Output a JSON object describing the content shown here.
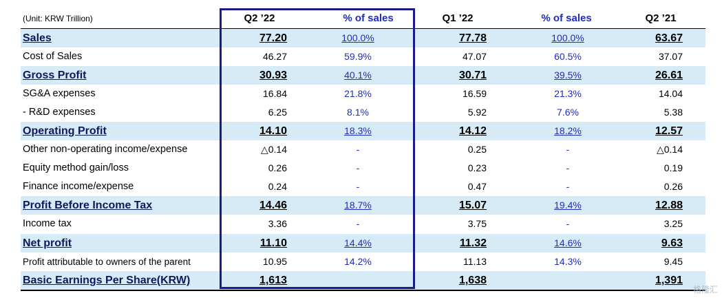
{
  "header": {
    "unit": "(Unit: KRW Trillion)",
    "col1": "Q2 ’22",
    "col2": "% of sales",
    "col3": "Q1 ’22",
    "col4": "% of sales",
    "col5": "Q2 ’21"
  },
  "rows": [
    {
      "label": "Sales",
      "q2_22": "77.20",
      "pct_q2_22": "100.0%",
      "q1_22": "77.78",
      "pct_q1_22": "100.0%",
      "q2_21": "63.67"
    },
    {
      "label": "Cost of Sales",
      "q2_22": "46.27",
      "pct_q2_22": "59.9%",
      "q1_22": "47.07",
      "pct_q1_22": "60.5%",
      "q2_21": "37.07"
    },
    {
      "label": "Gross Profit",
      "q2_22": "30.93",
      "pct_q2_22": "40.1%",
      "q1_22": "30.71",
      "pct_q1_22": "39.5%",
      "q2_21": "26.61"
    },
    {
      "label": "SG&A expenses",
      "q2_22": "16.84",
      "pct_q2_22": "21.8%",
      "q1_22": "16.59",
      "pct_q1_22": "21.3%",
      "q2_21": "14.04"
    },
    {
      "label": " - R&D expenses",
      "q2_22": "6.25",
      "pct_q2_22": "8.1%",
      "q1_22": "5.92",
      "pct_q1_22": "7.6%",
      "q2_21": "5.38"
    },
    {
      "label": "Operating Profit",
      "q2_22": "14.10",
      "pct_q2_22": "18.3%",
      "q1_22": "14.12",
      "pct_q1_22": "18.2%",
      "q2_21": "12.57"
    },
    {
      "label": "Other non-operating income/expense",
      "q2_22": "△0.14",
      "pct_q2_22": "-",
      "q1_22": "0.25",
      "pct_q1_22": "-",
      "q2_21": "△0.14"
    },
    {
      "label": "Equity method gain/loss",
      "q2_22": "0.26",
      "pct_q2_22": "-",
      "q1_22": "0.23",
      "pct_q1_22": "-",
      "q2_21": "0.19"
    },
    {
      "label": "Finance income/expense",
      "q2_22": "0.24",
      "pct_q2_22": "-",
      "q1_22": "0.47",
      "pct_q1_22": "-",
      "q2_21": "0.26"
    },
    {
      "label": "Profit Before Income Tax",
      "q2_22": "14.46",
      "pct_q2_22": "18.7%",
      "q1_22": "15.07",
      "pct_q1_22": "19.4%",
      "q2_21": "12.88"
    },
    {
      "label": "Income tax",
      "q2_22": "3.36",
      "pct_q2_22": "-",
      "q1_22": "3.75",
      "pct_q1_22": "-",
      "q2_21": "3.25"
    },
    {
      "label": "Net profit",
      "q2_22": "11.10",
      "pct_q2_22": "14.4%",
      "q1_22": "11.32",
      "pct_q1_22": "14.6%",
      "q2_21": "9.63"
    },
    {
      "label": "Profit attributable to owners of the parent",
      "q2_22": "10.95",
      "pct_q2_22": "14.2%",
      "q1_22": "11.13",
      "pct_q1_22": "14.3%",
      "q2_21": "9.45"
    },
    {
      "label": "Basic Earnings Per Share(KRW)",
      "q2_22": "1,613",
      "pct_q2_22": "",
      "q1_22": "1,638",
      "pct_q1_22": "",
      "q2_21": "1,391"
    }
  ],
  "watermark": "格隆汇"
}
